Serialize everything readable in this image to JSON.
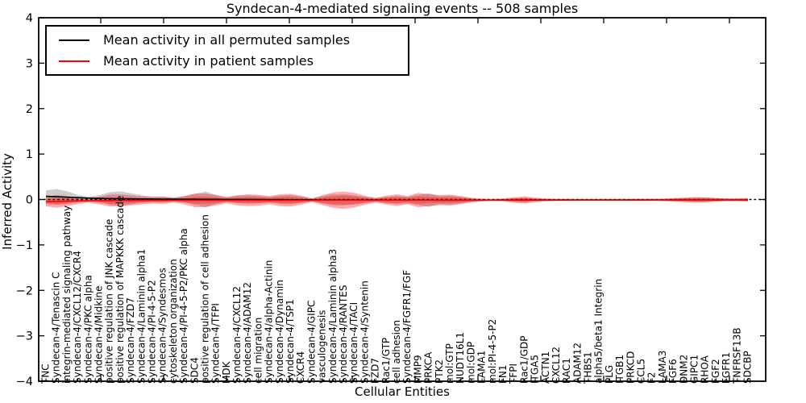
{
  "title": "Syndecan-4-mediated signaling events -- 508 samples",
  "legend": {
    "items": [
      {
        "label": "Mean activity in all permuted samples",
        "color": "#000000"
      },
      {
        "label": "Mean activity in patient samples",
        "color": "#ff0000"
      }
    ]
  },
  "colors": {
    "frame": "#000000",
    "background": "#ffffff",
    "permuted_line": "#000000",
    "patient_line": "#ff0000",
    "permuted_band": "#999999",
    "patient_band": "#ff0000",
    "zero_line": "#000000"
  },
  "chart_data": {
    "type": "line",
    "title": "Syndecan-4-mediated signaling events -- 508 samples",
    "xlabel": "Cellular Entities",
    "ylabel": "Inferred Activity",
    "ylim": [
      -4,
      4
    ],
    "yticks": [
      "4",
      "3",
      "2",
      "1",
      "0",
      "−1",
      "−2",
      "−3",
      "−4"
    ],
    "grid": false,
    "legend_position": "upper left",
    "zero_line": {
      "style": "dashed",
      "color": "#000000",
      "y": 0
    },
    "categories": [
      "TNC",
      "Syndecan-4/Tenascin C",
      "integrin-mediated signaling pathway",
      "Syndecan-4/CXCL12/CXCR4",
      "Syndecan-4/PKC alpha",
      "Syndecan-4/Midkine",
      "positive regulation of JNK cascade",
      "positive regulation of MAPKKK cascade",
      "Syndecan-4/FZD7",
      "Syndecan-4/Laminin alpha1",
      "Syndecan-4/PI-4-5-P2",
      "Syndecan-4/Syndesmos",
      "cytoskeleton organization",
      "Syndecan-4/PI-4-5-P2/PKC alpha",
      "SDC4",
      "positive regulation of cell adhesion",
      "Syndecan-4/TFPI",
      "MDK",
      "Syndecan-4/CXCL12",
      "Syndecan-4/ADAM12",
      "cell migration",
      "Syndecan-4/alpha-Actinin",
      "Syndecan-4/Dynamin",
      "Syndecan-4/TSP1",
      "CXCR4",
      "Syndecan-4/GIPC",
      "vasculogenesis",
      "Syndecan-4/Laminin alpha3",
      "Syndecan-4/RANTES",
      "Syndecan-4/TACI",
      "Syndecan-4/Syntenin",
      "FZD7",
      "Rac1/GTP",
      "cell adhesion",
      "Syndecan-4/FGFR1/FGF",
      "MMP9",
      "PRKCA",
      "PTK2",
      "mol:GTP",
      "NUDT16L1",
      "mol:GDP",
      "LAMA1",
      "mol:PI-4-5-P2",
      "FN1",
      "TFPI",
      "Rac1/GDP",
      "ITGA5",
      "ACTN1",
      "CXCL12",
      "RAC1",
      "ADAM12",
      "THBS1",
      "alpha5/beta1 Integrin",
      "PLG",
      "ITGB1",
      "PRKCD",
      "CCL5",
      "F2",
      "LAMA3",
      "FGF6",
      "DNM2",
      "GIPC1",
      "RHOA",
      "FGF2",
      "FGFR1",
      "TNFRSF13B",
      "SDCBP"
    ],
    "series": [
      {
        "name": "Mean activity in all permuted samples",
        "color": "#000000",
        "values": [
          0.07,
          0.06,
          0.05,
          0.04,
          0.03,
          0.025,
          0.02,
          0.018,
          0.015,
          0.012,
          0.01,
          0.008,
          0.007,
          0.006,
          0.005,
          0.004,
          0.003,
          0.002,
          0.001,
          0,
          -0.002,
          -0.003,
          -0.004,
          -0.005,
          -0.006,
          -0.007,
          -0.008,
          -0.009,
          -0.01,
          -0.01,
          -0.011,
          -0.011,
          -0.012,
          -0.012,
          -0.013,
          -0.013,
          -0.013,
          -0.014,
          -0.014,
          -0.014,
          -0.014,
          -0.014,
          -0.014,
          -0.013,
          -0.013,
          -0.013,
          -0.012,
          -0.012,
          -0.012,
          -0.011,
          -0.011,
          -0.011,
          -0.01,
          -0.01,
          -0.01,
          -0.01,
          -0.01,
          -0.009,
          -0.009,
          -0.009,
          -0.009,
          -0.008,
          -0.008,
          -0.008,
          -0.008,
          -0.008,
          -0.008
        ]
      },
      {
        "name": "Mean activity in patient samples",
        "color": "#ff0000",
        "values": [
          -0.05,
          -0.042,
          -0.038,
          -0.032,
          -0.028,
          -0.025,
          -0.024,
          -0.022,
          -0.021,
          -0.02,
          -0.019,
          -0.019,
          -0.018,
          -0.018,
          -0.018,
          -0.018,
          -0.017,
          -0.017,
          -0.017,
          -0.017,
          -0.017,
          -0.016,
          -0.016,
          -0.016,
          -0.016,
          -0.016,
          -0.015,
          -0.015,
          -0.015,
          -0.015,
          -0.015,
          -0.015,
          -0.014,
          -0.014,
          -0.014,
          -0.014,
          -0.014,
          -0.013,
          -0.013,
          -0.013,
          -0.012,
          -0.012,
          -0.012,
          -0.011,
          -0.011,
          -0.011,
          -0.01,
          -0.01,
          -0.01,
          -0.009,
          -0.009,
          -0.009,
          -0.008,
          -0.008,
          -0.008,
          -0.008,
          -0.008,
          -0.007,
          -0.007,
          -0.007,
          -0.007,
          -0.007,
          -0.007,
          -0.006,
          -0.006,
          -0.006,
          -0.006
        ]
      }
    ],
    "bands": [
      {
        "name": "Std of activity in all permuted samples",
        "center_series": 0,
        "color": "#999999",
        "opacity": 0.5,
        "half_widths": [
          0.13,
          0.17,
          0.13,
          0.06,
          0.03,
          0.07,
          0.14,
          0.16,
          0.12,
          0.08,
          0.06,
          0.06,
          0.04,
          0.07,
          0.12,
          0.17,
          0.1,
          0.05,
          0.08,
          0.09,
          0.08,
          0.06,
          0.09,
          0.1,
          0.07,
          0.03,
          0.08,
          0.12,
          0.12,
          0.1,
          0.07,
          0.04,
          0.07,
          0.09,
          0.07,
          0.11,
          0.15,
          0.09,
          0.1,
          0.07,
          0.04,
          0.02,
          0.015,
          0.02,
          0.04,
          0.05,
          0.03,
          0.02,
          0.015,
          0.01,
          0.01,
          0.01,
          0.01,
          0.01,
          0.01,
          0.01,
          0.01,
          0.01,
          0.02,
          0.03,
          0.04,
          0.05,
          0.06,
          0.04,
          0.025,
          0.02,
          0.03
        ]
      },
      {
        "name": "Std of activity in patient samples",
        "center_series": 1,
        "color": "#ff0000",
        "opacity": 0.33,
        "half_widths": [
          0.1,
          0.14,
          0.11,
          0.07,
          0.04,
          0.08,
          0.13,
          0.13,
          0.11,
          0.09,
          0.07,
          0.08,
          0.05,
          0.09,
          0.15,
          0.15,
          0.11,
          0.07,
          0.11,
          0.13,
          0.12,
          0.09,
          0.13,
          0.14,
          0.1,
          0.04,
          0.11,
          0.17,
          0.19,
          0.16,
          0.1,
          0.05,
          0.1,
          0.13,
          0.09,
          0.16,
          0.13,
          0.11,
          0.12,
          0.09,
          0.05,
          0.03,
          0.02,
          0.03,
          0.06,
          0.08,
          0.05,
          0.03,
          0.02,
          0.02,
          0.015,
          0.015,
          0.015,
          0.015,
          0.015,
          0.02,
          0.02,
          0.02,
          0.025,
          0.04,
          0.05,
          0.06,
          0.05,
          0.04,
          0.03,
          0.03,
          0.04
        ]
      }
    ]
  }
}
